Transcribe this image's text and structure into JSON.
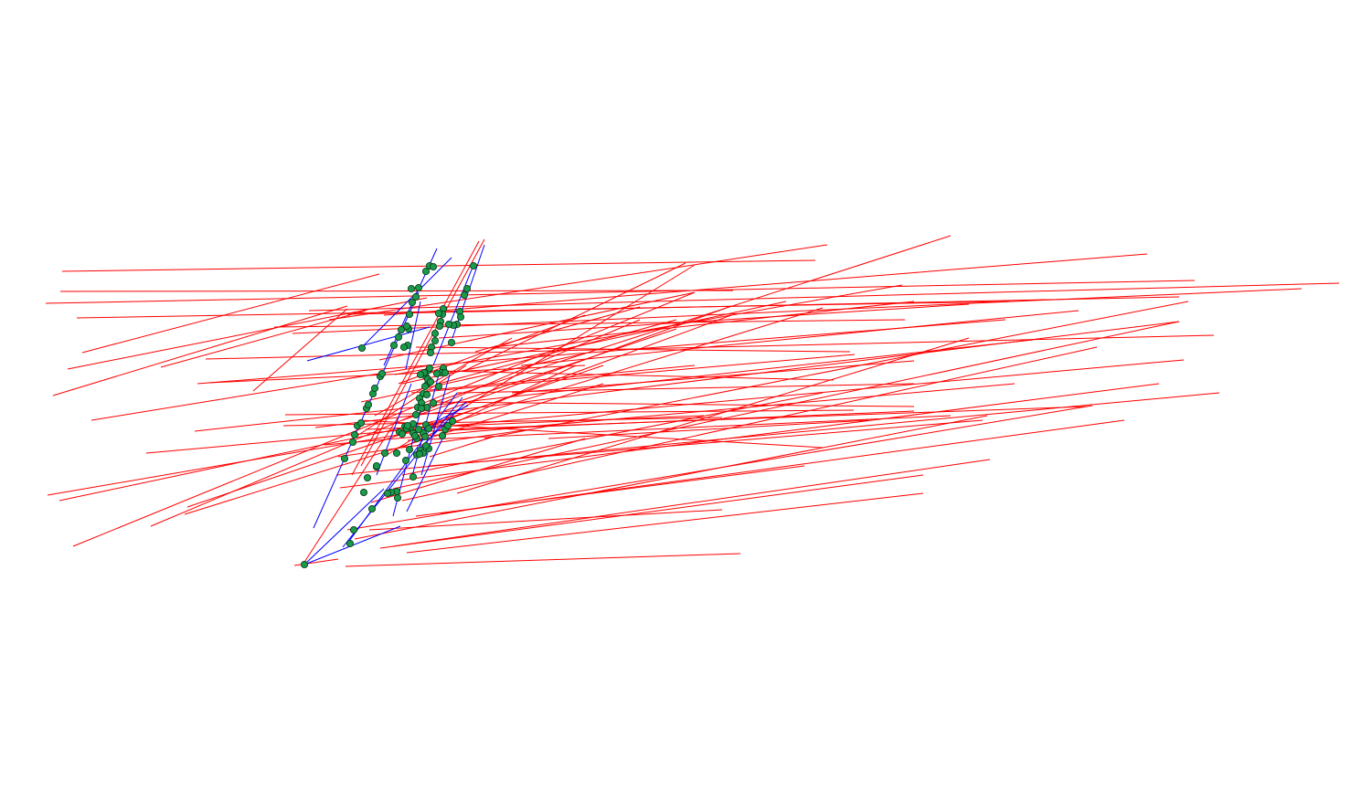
{
  "diagram": {
    "title": "",
    "colors": {
      "background": "#ffffff",
      "red_segment": "#ff0000",
      "blue_segment": "#0000ff",
      "node_fill": "#1a9a4a",
      "node_stroke": "#0b3d1c"
    },
    "legend": [],
    "labels": [],
    "counts": {
      "red_segments": 88,
      "blue_segments": 18,
      "nodes": 110
    }
  }
}
